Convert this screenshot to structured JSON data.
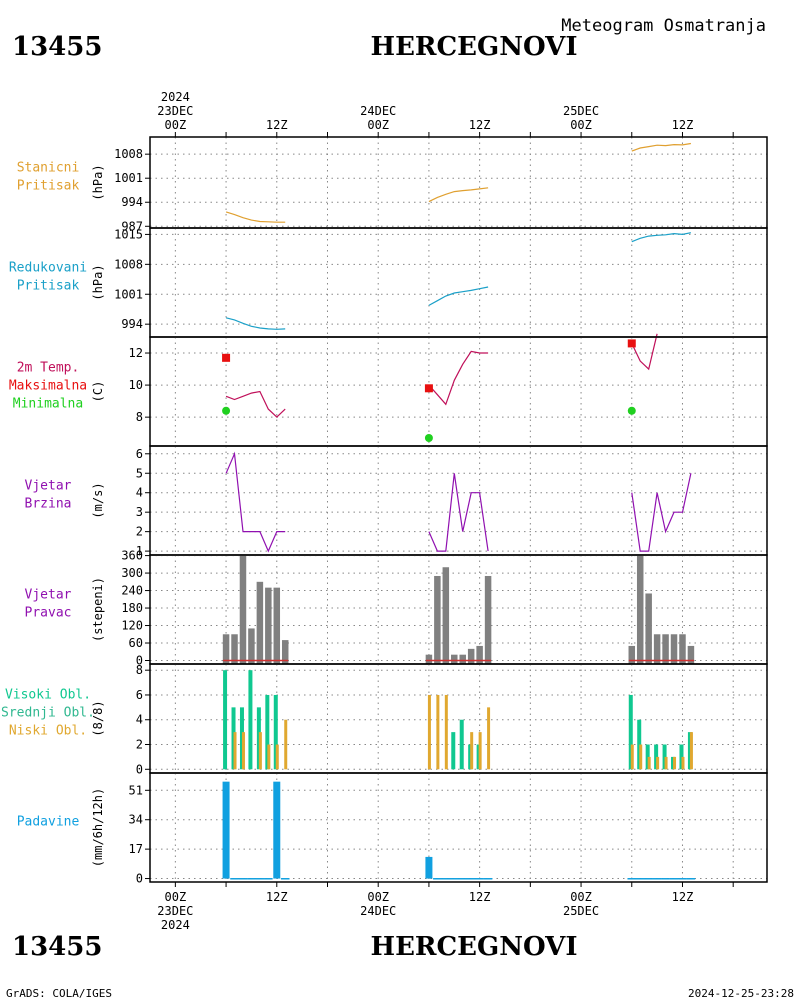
{
  "header": {
    "station_id": "13455",
    "station_name": "HERCEGNOVI",
    "subtitle": "Meteogram Osmatranja",
    "footer_left": "GrADS: COLA/IGES",
    "footer_right": "2024-12-25-23:28"
  },
  "time_axis": {
    "top_labels": [
      {
        "hour": 0,
        "lines": [
          "2024",
          "23DEC",
          "00Z"
        ]
      },
      {
        "hour": 12,
        "lines": [
          "12Z"
        ]
      },
      {
        "hour": 24,
        "lines": [
          "24DEC",
          "00Z"
        ]
      },
      {
        "hour": 36,
        "lines": [
          "12Z"
        ]
      },
      {
        "hour": 48,
        "lines": [
          "25DEC",
          "00Z"
        ]
      },
      {
        "hour": 60,
        "lines": [
          "12Z"
        ]
      }
    ],
    "bottom_labels": [
      {
        "hour": 0,
        "lines": [
          "00Z",
          "23DEC",
          "2024"
        ]
      },
      {
        "hour": 12,
        "lines": [
          "12Z"
        ]
      },
      {
        "hour": 24,
        "lines": [
          "00Z",
          "24DEC"
        ]
      },
      {
        "hour": 36,
        "lines": [
          "12Z"
        ]
      },
      {
        "hour": 48,
        "lines": [
          "00Z",
          "25DEC"
        ]
      },
      {
        "hour": 60,
        "lines": [
          "12Z"
        ]
      }
    ],
    "range_hours": [
      -3,
      70
    ]
  },
  "colors": {
    "station_pressure": "#e0a030",
    "reduced_pressure": "#1aa0c8",
    "temperature": "#c0105a",
    "maximum": "#e81010",
    "minimum": "#20d020",
    "wind": "#9010b0",
    "direction_bar": "#808080",
    "direction_base": "#d03030",
    "high_cloud": "#10c890",
    "mid_cloud": "#30b890",
    "low_cloud": "#e0a830",
    "precip": "#10a0e0"
  },
  "chart_data": [
    {
      "id": "station_pressure",
      "type": "line",
      "label_lines": [
        "Stanicni",
        "Pritisak"
      ],
      "ylabel": "(hPa)",
      "yticks": [
        987,
        994,
        1001,
        1008
      ],
      "ylim": [
        986.5,
        1013
      ],
      "series": [
        {
          "x": [
            6,
            7,
            8,
            9,
            10,
            11,
            12,
            13
          ],
          "y": [
            991.2,
            990.4,
            989.5,
            988.8,
            988.4,
            988.3,
            988.2,
            988.2
          ]
        },
        {
          "x": [
            30,
            31,
            32,
            33,
            34,
            35,
            36,
            37
          ],
          "y": [
            994.2,
            995.4,
            996.3,
            997.1,
            997.4,
            997.6,
            997.9,
            998.2
          ]
        },
        {
          "x": [
            54,
            55,
            56,
            57,
            58,
            59,
            60,
            61
          ],
          "y": [
            1008.9,
            1009.8,
            1010.2,
            1010.6,
            1010.5,
            1010.8,
            1010.7,
            1011.1
          ]
        }
      ]
    },
    {
      "id": "reduced_pressure",
      "type": "line",
      "label_lines": [
        "Redukovani",
        "Pritisak"
      ],
      "ylabel": "(hPa)",
      "yticks": [
        994,
        1001,
        1008,
        1015
      ],
      "ylim": [
        991,
        1016.5
      ],
      "series": [
        {
          "x": [
            6,
            7,
            8,
            9,
            10,
            11,
            12,
            13
          ],
          "y": [
            995.5,
            995,
            994.2,
            993.5,
            993.1,
            992.9,
            992.8,
            992.9
          ]
        },
        {
          "x": [
            30,
            31,
            32,
            33,
            34,
            35,
            36,
            37
          ],
          "y": [
            998.4,
            999.5,
            1000.6,
            1001.3,
            1001.6,
            1001.9,
            1002.3,
            1002.7
          ]
        },
        {
          "x": [
            54,
            55,
            56,
            57,
            58,
            59,
            60,
            61
          ],
          "y": [
            1013.3,
            1014.1,
            1014.6,
            1014.8,
            1014.9,
            1015.2,
            1015,
            1015.4
          ]
        }
      ]
    },
    {
      "id": "temperature",
      "type": "line",
      "label_lines": [
        "2m Temp.",
        "Maksimalna",
        "Minimalna"
      ],
      "label_colors": [
        "temperature",
        "maximum",
        "minimum"
      ],
      "ylabel": "(C)",
      "yticks": [
        8,
        10,
        12
      ],
      "ylim": [
        6.2,
        13
      ],
      "series": [
        {
          "x": [
            6,
            7,
            8,
            9,
            10,
            11,
            12,
            13
          ],
          "y": [
            9.3,
            9.1,
            9.3,
            9.5,
            9.6,
            8.5,
            8,
            8.5
          ]
        },
        {
          "x": [
            30,
            31,
            32,
            33,
            34,
            35,
            36,
            37
          ],
          "y": [
            10,
            9.4,
            8.8,
            10.3,
            11.3,
            12.1,
            12,
            12
          ]
        },
        {
          "x": [
            54,
            55,
            56,
            57
          ],
          "y": [
            12.6,
            11.5,
            11,
            13.2
          ]
        }
      ],
      "maximum": {
        "x": [
          6,
          30,
          54
        ],
        "y": [
          11.7,
          9.8,
          12.6
        ]
      },
      "minimum": {
        "x": [
          6,
          30,
          54
        ],
        "y": [
          8.4,
          6.7,
          8.4
        ]
      }
    },
    {
      "id": "wind_speed",
      "type": "line",
      "label_lines": [
        "Vjetar",
        "Brzina"
      ],
      "ylabel": "(m/s)",
      "yticks": [
        1,
        2,
        3,
        4,
        5,
        6
      ],
      "ylim": [
        0.8,
        6.4
      ],
      "series": [
        {
          "x": [
            6,
            7,
            8,
            9,
            10,
            11,
            12,
            13
          ],
          "y": [
            5,
            6,
            2,
            2,
            2,
            1,
            2,
            2
          ]
        },
        {
          "x": [
            30,
            31,
            32,
            33,
            34,
            35,
            36,
            37
          ],
          "y": [
            2,
            1,
            1,
            5,
            2,
            4,
            4,
            1
          ]
        },
        {
          "x": [
            54,
            55,
            56,
            57,
            58,
            59,
            60,
            61
          ],
          "y": [
            4,
            1,
            1,
            4,
            2,
            3,
            3,
            5
          ]
        }
      ]
    },
    {
      "id": "wind_direction",
      "type": "bar",
      "label_lines": [
        "Vjetar",
        "Pravac"
      ],
      "ylabel": "(stepeni)",
      "yticks": [
        0,
        60,
        120,
        180,
        240,
        300,
        360
      ],
      "ylim": [
        -12,
        362
      ],
      "x": [
        6,
        7,
        8,
        9,
        10,
        11,
        12,
        13,
        30,
        31,
        32,
        33,
        34,
        35,
        36,
        37,
        54,
        55,
        56,
        57,
        58,
        59,
        60,
        61
      ],
      "values": [
        90,
        90,
        360,
        110,
        270,
        250,
        250,
        70,
        20,
        290,
        320,
        20,
        20,
        40,
        50,
        290,
        50,
        360,
        230,
        90,
        90,
        90,
        90,
        50
      ]
    },
    {
      "id": "cloud_cover",
      "type": "bar",
      "label_lines": [
        "Visoki Obl.",
        "Srednji Obl.",
        "Niski Obl."
      ],
      "label_colors": [
        "high_cloud",
        "mid_cloud",
        "low_cloud"
      ],
      "ylabel": "(8/8)",
      "yticks": [
        0,
        2,
        4,
        6,
        8
      ],
      "ylim": [
        -0.3,
        8.5
      ],
      "x": [
        6,
        7,
        8,
        9,
        10,
        11,
        12,
        13,
        30,
        31,
        32,
        33,
        34,
        35,
        36,
        37,
        54,
        55,
        56,
        57,
        58,
        59,
        60,
        61
      ],
      "series": [
        {
          "name": "Visoki Obl.",
          "values": [
            8,
            5,
            5,
            8,
            5,
            6,
            6,
            0,
            0,
            0,
            0,
            3,
            4,
            2,
            2,
            0,
            6,
            4,
            2,
            2,
            2,
            1,
            2,
            3
          ]
        },
        {
          "name": "Niski Obl.",
          "values": [
            0,
            3,
            3,
            0,
            3,
            2,
            2,
            4,
            6,
            6,
            6,
            0,
            0,
            3,
            3,
            5,
            2,
            2,
            1,
            1,
            1,
            1,
            1,
            3
          ]
        }
      ]
    },
    {
      "id": "precipitation",
      "type": "bar",
      "label_lines": [
        "Padavine"
      ],
      "ylabel": "(mm/6h/12h)",
      "yticks": [
        0,
        17,
        34,
        51
      ],
      "ylim": [
        -2,
        61
      ],
      "x": [
        6,
        7,
        8,
        9,
        10,
        11,
        12,
        13,
        30,
        31,
        32,
        33,
        34,
        35,
        36,
        37,
        54,
        55,
        56,
        57,
        58,
        59,
        60,
        61
      ],
      "values": [
        56,
        0.3,
        0.3,
        0.3,
        0.3,
        0.3,
        56,
        0.3,
        12.5,
        0.3,
        0.3,
        0.3,
        0.3,
        0.3,
        0.3,
        0.3,
        0.3,
        0.3,
        0.3,
        0.3,
        0.3,
        0.3,
        0.3,
        0.3
      ]
    }
  ]
}
